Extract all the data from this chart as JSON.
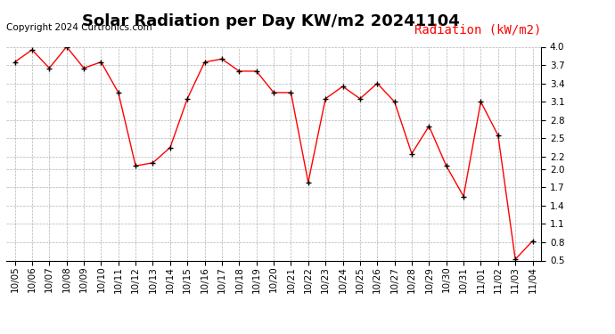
{
  "title": "Solar Radiation per Day KW/m2 20241104",
  "copyright": "Copyright 2024 Curtronics.com",
  "legend_label": "Radiation (kW/m2)",
  "dates": [
    "10/05",
    "10/06",
    "10/07",
    "10/08",
    "10/09",
    "10/10",
    "10/11",
    "10/12",
    "10/13",
    "10/14",
    "10/15",
    "10/16",
    "10/17",
    "10/18",
    "10/19",
    "10/20",
    "10/21",
    "10/22",
    "10/23",
    "10/24",
    "10/25",
    "10/26",
    "10/27",
    "10/28",
    "10/29",
    "10/30",
    "10/31",
    "11/01",
    "11/02",
    "11/03",
    "11/04"
  ],
  "values": [
    3.75,
    3.95,
    3.65,
    4.0,
    3.65,
    3.75,
    3.25,
    2.05,
    2.1,
    2.35,
    3.15,
    3.75,
    3.8,
    3.6,
    3.6,
    3.25,
    3.25,
    1.78,
    3.15,
    3.35,
    3.15,
    3.4,
    3.1,
    2.25,
    2.7,
    2.05,
    1.55,
    3.1,
    2.55,
    0.52,
    0.82
  ],
  "ylim": [
    0.5,
    4.0
  ],
  "yticks": [
    0.5,
    0.8,
    1.1,
    1.4,
    1.7,
    2.0,
    2.2,
    2.5,
    2.8,
    3.1,
    3.4,
    3.7,
    4.0
  ],
  "line_color": "red",
  "marker": "+",
  "marker_color": "black",
  "grid_color": "#aaaaaa",
  "bg_color": "#ffffff",
  "title_fontsize": 13,
  "copyright_fontsize": 7.5,
  "legend_fontsize": 10,
  "tick_fontsize": 7.5
}
